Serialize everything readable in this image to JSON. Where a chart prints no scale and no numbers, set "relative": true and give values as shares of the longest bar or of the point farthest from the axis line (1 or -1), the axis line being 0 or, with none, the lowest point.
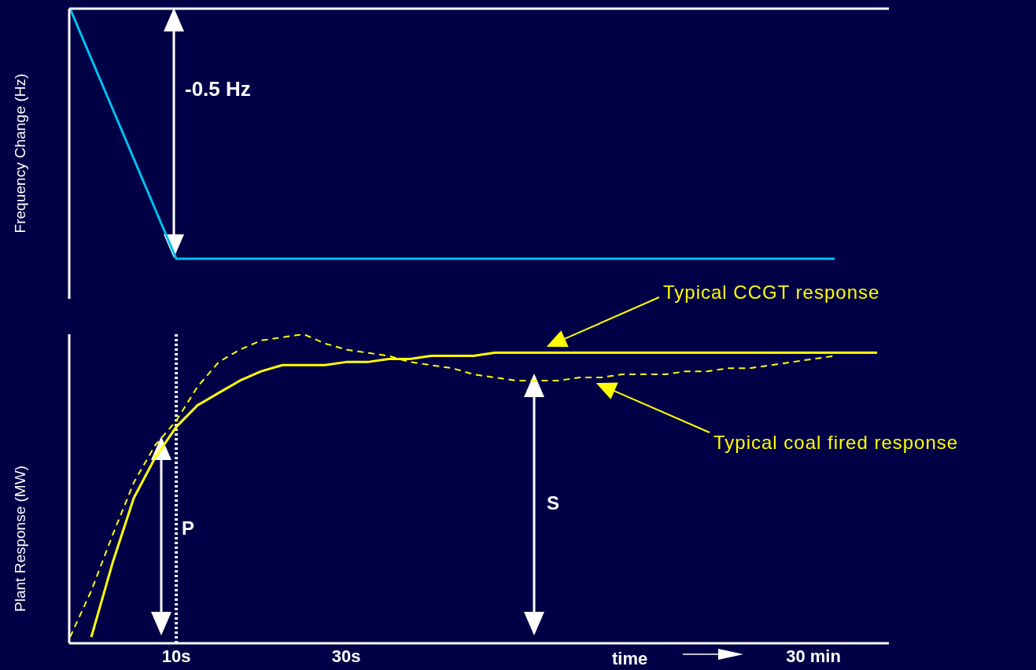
{
  "chart_data": [
    {
      "type": "line",
      "ylabel": "Frequency Change (Hz)",
      "relative": true,
      "categories": [
        null,
        null,
        null,
        null,
        null,
        null,
        null,
        null,
        null,
        null,
        null,
        null,
        null,
        null,
        null,
        null,
        null,
        null,
        null,
        null,
        null,
        null,
        null,
        null,
        null,
        null,
        null,
        null,
        null,
        null,
        null,
        null,
        null,
        null,
        null,
        null,
        null,
        null,
        null
      ],
      "tick_labels": false,
      "marker": "none",
      "annotations": [
        "-0.5 Hz"
      ],
      "series": [
        {
          "color": "#00c0f0",
          "values": [
            0,
            -0.2,
            -0.4,
            -0.6,
            -0.8,
            -1,
            -1,
            -1,
            -1,
            -1,
            -1,
            -1,
            -1,
            -1,
            -1,
            -1,
            -1,
            -1,
            -1,
            -1,
            -1,
            -1,
            -1,
            -1,
            -1,
            -1,
            -1,
            -1,
            -1,
            -1,
            -1,
            -1,
            -1,
            -1,
            -1,
            -1,
            -1,
            null,
            null
          ]
        }
      ]
    },
    {
      "type": "line",
      "ylabel": "Plant Response (MW)",
      "xlabel": "time",
      "relative": true,
      "categories": [
        null,
        null,
        null,
        null,
        null,
        "10s",
        null,
        null,
        null,
        null,
        null,
        null,
        null,
        "30s",
        null,
        null,
        null,
        null,
        null,
        null,
        null,
        null,
        null,
        null,
        null,
        null,
        null,
        null,
        null,
        null,
        null,
        null,
        null,
        null,
        null,
        "30 min",
        null,
        null,
        null
      ],
      "tick_labels": "x",
      "marker": "none",
      "annotations": [
        "P",
        "S",
        "Typical CCGT response",
        "Typical coal fired response"
      ],
      "ref_lines": [
        {
          "axis": "x",
          "value": "10s",
          "label": null,
          "color": "#ffffff",
          "line_style": "dotted"
        }
      ],
      "series": [
        {
          "color": "#ffff00",
          "line_style": "solid",
          "values": [
            null,
            0.02,
            0.26,
            0.47,
            0.6,
            0.7,
            0.77,
            0.81,
            0.85,
            0.88,
            0.9,
            0.9,
            0.9,
            0.91,
            0.91,
            0.92,
            0.92,
            0.93,
            0.93,
            0.93,
            0.94,
            0.94,
            0.94,
            0.94,
            0.94,
            0.94,
            0.94,
            0.94,
            0.94,
            0.94,
            0.94,
            0.94,
            0.94,
            0.94,
            0.94,
            0.94,
            0.94,
            0.94,
            0.94
          ]
        },
        {
          "color": "#ffff00",
          "line_style": "dashed",
          "values": [
            0.02,
            0.17,
            0.35,
            0.52,
            0.64,
            0.72,
            0.83,
            0.91,
            0.95,
            0.98,
            0.99,
            1,
            0.97,
            0.95,
            0.94,
            0.93,
            0.91,
            0.9,
            0.89,
            0.87,
            0.86,
            0.85,
            0.85,
            0.85,
            0.86,
            0.86,
            0.87,
            0.87,
            0.87,
            0.88,
            0.88,
            0.89,
            0.89,
            0.9,
            0.91,
            0.92,
            0.93,
            null,
            null
          ]
        }
      ]
    }
  ]
}
